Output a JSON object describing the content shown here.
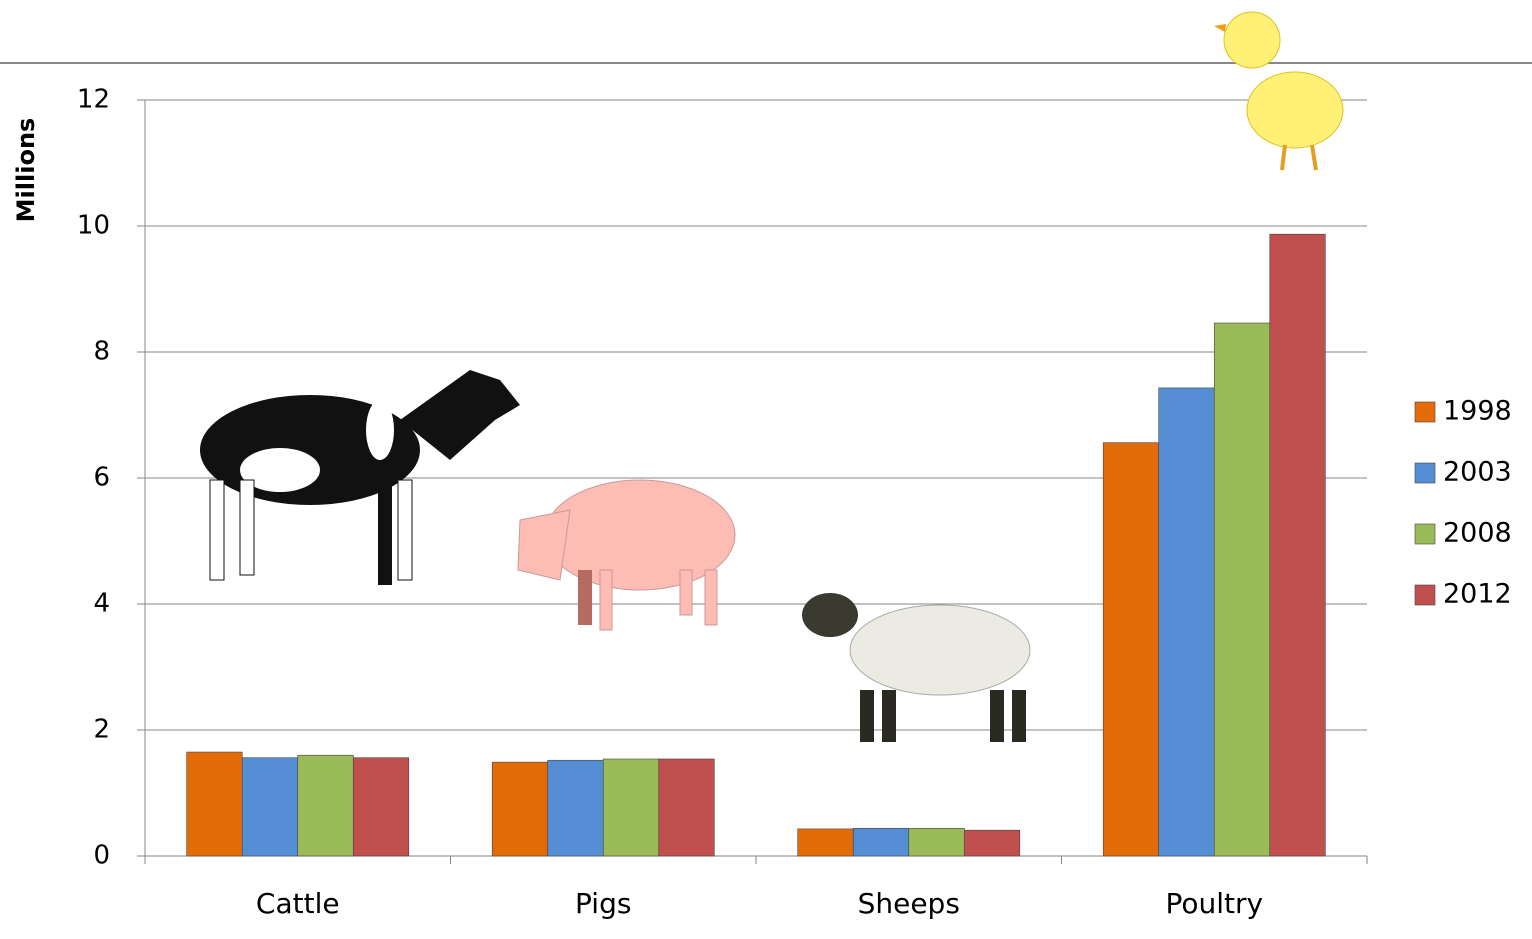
{
  "chart_data": {
    "type": "bar",
    "y_label": "Millions",
    "categories": [
      "Cattle",
      "Pigs",
      "Sheeps",
      "Poultry"
    ],
    "series": [
      {
        "name": "1998",
        "color": "#e36c09",
        "values": [
          1.65,
          1.49,
          0.43,
          6.56
        ]
      },
      {
        "name": "2003",
        "color": "#558ed5",
        "values": [
          1.56,
          1.52,
          0.44,
          7.43
        ]
      },
      {
        "name": "2008",
        "color": "#9bbb59",
        "values": [
          1.6,
          1.54,
          0.44,
          8.46
        ]
      },
      {
        "name": "2012",
        "color": "#c0504d",
        "values": [
          1.56,
          1.54,
          0.41,
          9.87
        ]
      }
    ],
    "ylim": [
      0,
      12
    ],
    "yticks": [
      0,
      2,
      4,
      6,
      8,
      10,
      12
    ],
    "grid": true,
    "legend": "right"
  }
}
